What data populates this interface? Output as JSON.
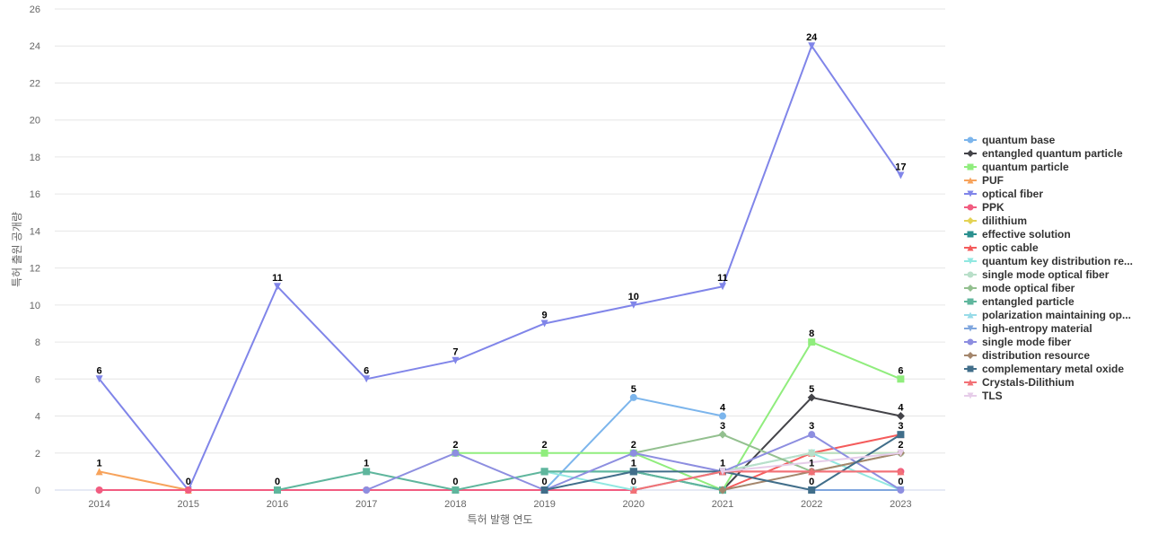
{
  "chart_data": {
    "type": "line",
    "title": "",
    "xlabel": "특허 발행 연도",
    "ylabel": "특허 출원 공개량",
    "x": [
      "2014",
      "2015",
      "2016",
      "2017",
      "2018",
      "2019",
      "2020",
      "2021",
      "2022",
      "2023"
    ],
    "ylim": [
      0,
      26
    ],
    "yticks": [
      0,
      2,
      4,
      6,
      8,
      10,
      12,
      14,
      16,
      18,
      20,
      22,
      24,
      26
    ],
    "grid": true,
    "legend_position": "right",
    "series": [
      {
        "name": "quantum base",
        "color": "#7cb5ec",
        "marker": "circle",
        "values": [
          null,
          null,
          null,
          null,
          null,
          0,
          5,
          4,
          null,
          null
        ],
        "labels": [
          false,
          false,
          false,
          false,
          false,
          false,
          true,
          true,
          false,
          false
        ]
      },
      {
        "name": "entangled quantum particle",
        "color": "#434348",
        "marker": "diamond",
        "values": [
          null,
          null,
          null,
          null,
          null,
          null,
          null,
          0,
          5,
          4
        ],
        "labels": [
          false,
          false,
          false,
          false,
          false,
          false,
          false,
          false,
          true,
          true
        ]
      },
      {
        "name": "quantum particle",
        "color": "#90ed7d",
        "marker": "square",
        "values": [
          null,
          null,
          null,
          null,
          2,
          2,
          2,
          0,
          8,
          6
        ],
        "labels": [
          false,
          false,
          false,
          false,
          false,
          true,
          false,
          false,
          true,
          true
        ]
      },
      {
        "name": "PUF",
        "color": "#f7a35c",
        "marker": "triangle",
        "values": [
          1,
          0,
          null,
          null,
          null,
          null,
          null,
          null,
          null,
          null
        ],
        "labels": [
          true,
          false,
          false,
          false,
          false,
          false,
          false,
          false,
          false,
          false
        ]
      },
      {
        "name": "optical fiber",
        "color": "#8085e9",
        "marker": "triangle-down",
        "values": [
          6,
          0,
          11,
          6,
          7,
          9,
          10,
          11,
          24,
          17
        ],
        "labels": [
          true,
          true,
          true,
          true,
          true,
          true,
          true,
          true,
          true,
          true
        ]
      },
      {
        "name": "PPK",
        "color": "#f15c80",
        "marker": "circle",
        "values": [
          0,
          0,
          0,
          0,
          null,
          0,
          0,
          1,
          1,
          1
        ],
        "labels": [
          false,
          false,
          false,
          false,
          false,
          false,
          false,
          false,
          false,
          false
        ]
      },
      {
        "name": "dilithium",
        "color": "#e4d354",
        "marker": "diamond",
        "values": [
          null,
          null,
          null,
          null,
          null,
          null,
          null,
          null,
          2,
          2
        ],
        "labels": [
          false,
          false,
          false,
          false,
          false,
          false,
          false,
          false,
          false,
          false
        ]
      },
      {
        "name": "effective solution",
        "color": "#2b908f",
        "marker": "square",
        "values": [
          null,
          null,
          null,
          null,
          null,
          1,
          1,
          0,
          null,
          null
        ],
        "labels": [
          false,
          false,
          false,
          false,
          false,
          false,
          false,
          false,
          false,
          false
        ]
      },
      {
        "name": "optic cable",
        "color": "#f45b5b",
        "marker": "triangle",
        "values": [
          null,
          null,
          null,
          null,
          null,
          null,
          null,
          0,
          2,
          3
        ],
        "labels": [
          false,
          false,
          false,
          false,
          false,
          false,
          false,
          false,
          false,
          false
        ]
      },
      {
        "name": "quantum key distribution re...",
        "color": "#91e8e1",
        "marker": "triangle-down",
        "values": [
          null,
          null,
          null,
          null,
          null,
          1,
          0,
          1,
          2,
          0
        ],
        "labels": [
          false,
          false,
          false,
          false,
          false,
          false,
          false,
          false,
          false,
          true
        ]
      },
      {
        "name": "single mode optical fiber",
        "color": "#b9dfc9",
        "marker": "circle",
        "values": [
          null,
          null,
          null,
          null,
          null,
          null,
          null,
          1,
          2,
          2
        ],
        "labels": [
          false,
          false,
          false,
          false,
          false,
          false,
          false,
          false,
          false,
          false
        ]
      },
      {
        "name": "mode optical fiber",
        "color": "#93c08f",
        "marker": "diamond",
        "values": [
          null,
          null,
          null,
          null,
          null,
          null,
          2,
          3,
          1,
          2
        ],
        "labels": [
          false,
          false,
          false,
          false,
          false,
          false,
          true,
          true,
          false,
          true
        ]
      },
      {
        "name": "entangled particle",
        "color": "#5fb69d",
        "marker": "square",
        "values": [
          null,
          null,
          0,
          1,
          0,
          1,
          1,
          0,
          null,
          null
        ],
        "labels": [
          false,
          false,
          true,
          true,
          true,
          false,
          false,
          false,
          false,
          false
        ]
      },
      {
        "name": "polarization maintaining op...",
        "color": "#98dbe8",
        "marker": "triangle",
        "values": [
          null,
          null,
          null,
          null,
          null,
          null,
          null,
          1,
          null,
          null
        ],
        "labels": [
          false,
          false,
          false,
          false,
          false,
          false,
          false,
          false,
          false,
          false
        ]
      },
      {
        "name": "high-entropy material",
        "color": "#7fa6de",
        "marker": "triangle-down",
        "values": [
          null,
          null,
          null,
          null,
          null,
          null,
          null,
          null,
          0,
          0
        ],
        "labels": [
          false,
          false,
          false,
          false,
          false,
          false,
          false,
          false,
          false,
          false
        ]
      },
      {
        "name": "single mode fiber",
        "color": "#8d8ee0",
        "marker": "circle",
        "values": [
          null,
          null,
          null,
          0,
          2,
          0,
          2,
          1,
          3,
          0
        ],
        "labels": [
          false,
          false,
          false,
          false,
          true,
          false,
          false,
          false,
          true,
          false
        ]
      },
      {
        "name": "distribution resource",
        "color": "#a4866c",
        "marker": "diamond",
        "values": [
          null,
          null,
          null,
          null,
          null,
          null,
          null,
          0,
          1,
          2
        ],
        "labels": [
          false,
          false,
          false,
          false,
          false,
          false,
          false,
          false,
          false,
          false
        ]
      },
      {
        "name": "complementary metal oxide",
        "color": "#416e8a",
        "marker": "square",
        "values": [
          null,
          null,
          null,
          null,
          null,
          0,
          1,
          1,
          0,
          3
        ],
        "labels": [
          false,
          false,
          false,
          false,
          false,
          true,
          true,
          false,
          true,
          true
        ]
      },
      {
        "name": "Crystals-Dilithium",
        "color": "#f27176",
        "marker": "triangle",
        "values": [
          null,
          null,
          null,
          null,
          null,
          null,
          0,
          1,
          1,
          1
        ],
        "labels": [
          false,
          false,
          false,
          false,
          false,
          false,
          true,
          true,
          true,
          false
        ]
      },
      {
        "name": "TLS",
        "color": "#e6cde9",
        "marker": "triangle-down",
        "values": [
          null,
          null,
          null,
          null,
          null,
          null,
          null,
          1,
          null,
          2
        ],
        "labels": [
          false,
          false,
          false,
          false,
          false,
          false,
          false,
          false,
          false,
          false
        ]
      }
    ]
  }
}
